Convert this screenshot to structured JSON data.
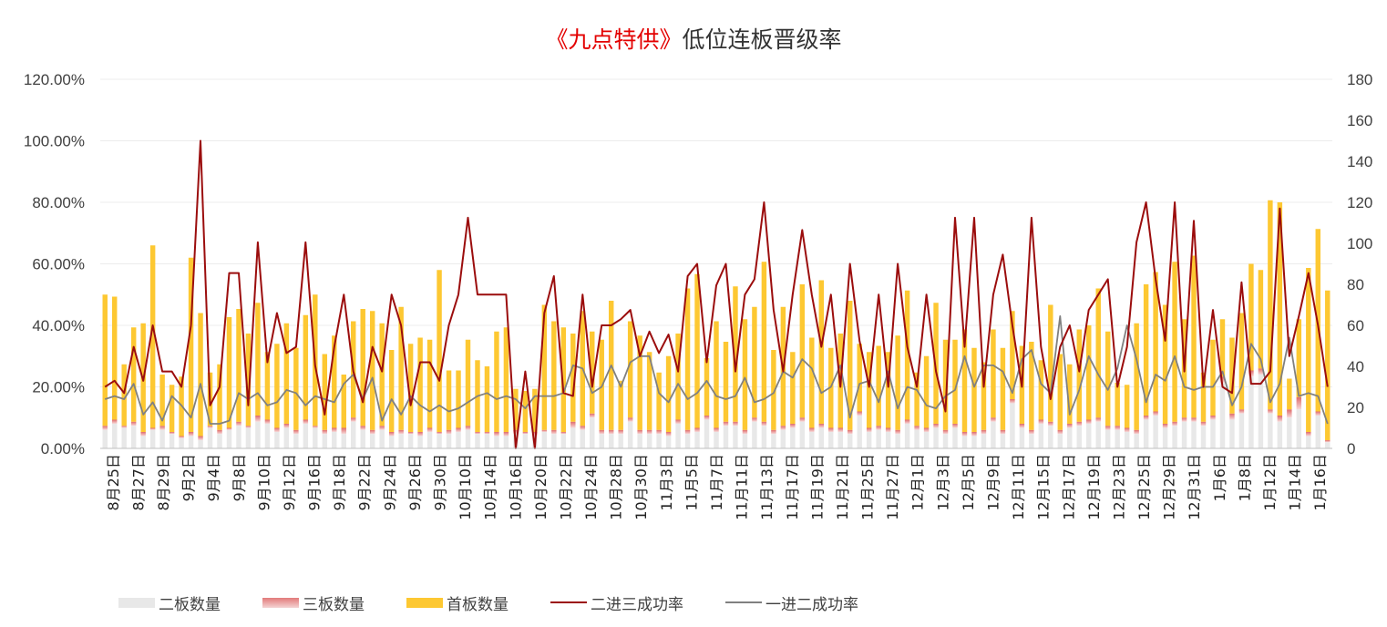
{
  "title": {
    "prefix": "《九点特供》",
    "suffix": "低位连板晋级率",
    "prefix_color": "#e30000"
  },
  "colors": {
    "first_board": "#fdc832",
    "second_board": "#e8e8e8",
    "third_board": "#e8a0a0",
    "rate_2to3": "#9b0d0d",
    "rate_1to2": "#808080",
    "axis_text": "#404040",
    "grid": "#ececec"
  },
  "legend": [
    {
      "label": "二板数量",
      "type": "box",
      "color": "#e8e8e8"
    },
    {
      "label": "三板数量",
      "type": "box",
      "color": "#e8a0a0"
    },
    {
      "label": "首板数量",
      "type": "box",
      "color": "#fdc832"
    },
    {
      "label": "二进三成功率",
      "type": "line",
      "color": "#9b0d0d"
    },
    {
      "label": "一进二成功率",
      "type": "line",
      "color": "#808080"
    }
  ],
  "chart_data": {
    "type": "bar",
    "title": "《九点特供》低位连板晋级率",
    "left_axis": {
      "ticks": [
        "0.00%",
        "20.00%",
        "40.00%",
        "60.00%",
        "80.00%",
        "100.00%",
        "120.00%"
      ],
      "ylim": [
        0,
        120
      ]
    },
    "right_axis": {
      "ticks": [
        "0",
        "20",
        "40",
        "60",
        "80",
        "100",
        "120",
        "140",
        "160",
        "180"
      ],
      "ylim": [
        0,
        180
      ]
    },
    "grid": true,
    "legend_position": "bottom",
    "x_labels": [
      "8月25日",
      "8月27日",
      "8月29日",
      "9月2日",
      "9月4日",
      "9月8日",
      "9月10日",
      "9月12日",
      "9月16日",
      "9月18日",
      "9月22日",
      "9月24日",
      "9月26日",
      "9月30日",
      "10月10日",
      "10月14日",
      "10月16日",
      "10月20日",
      "10月22日",
      "10月24日",
      "10月28日",
      "10月30日",
      "11月3日",
      "11月5日",
      "11月7日",
      "11月11日",
      "11月13日",
      "11月17日",
      "11月19日",
      "11月21日",
      "11月25日",
      "11月27日",
      "12月1日",
      "12月3日",
      "12月5日",
      "12月9日",
      "12月11日",
      "12月15日",
      "12月17日",
      "12月19日",
      "12月23日",
      "12月25日",
      "12月29日",
      "12月31日",
      "1月6日",
      "1月8日",
      "1月12日",
      "1月14日",
      "1月16日"
    ],
    "series": [
      {
        "name": "首板数量",
        "axis": "right",
        "kind": "stacked_bar",
        "values": [
          64,
          60,
          30,
          46,
          53,
          89,
          25,
          23,
          29,
          85,
          60,
          26,
          32,
          54,
          55,
          45,
          55,
          33,
          41,
          49,
          40,
          51,
          64,
          37,
          45,
          26,
          47,
          57,
          58,
          50,
          40,
          60,
          43,
          46,
          43,
          79,
          29,
          28,
          42,
          35,
          32,
          49,
          51,
          20,
          20,
          21,
          61,
          53,
          51,
          43,
          56,
          40,
          44,
          63,
          24,
          47,
          46,
          38,
          28,
          37,
          42,
          69,
          75,
          28,
          52,
          39,
          66,
          54,
          54,
          78,
          39,
          58,
          35,
          65,
          44,
          70,
          39,
          46,
          63,
          33,
          37,
          39,
          37,
          46,
          63,
          26,
          35,
          59,
          44,
          41,
          50,
          41,
          33,
          43,
          40,
          43,
          38,
          43,
          29,
          57,
          37,
          29,
          45,
          46,
          63,
          46,
          21,
          21,
          52,
          64,
          68,
          58,
          78,
          48,
          79,
          24,
          37,
          28,
          37,
          47,
          52,
          48,
          102,
          104,
          15,
          38,
          80,
          89,
          73
        ]
      },
      {
        "name": "二板数量",
        "axis": "right",
        "kind": "stacked_bar",
        "values": [
          9,
          12,
          10,
          11,
          6,
          9,
          9,
          7,
          5,
          6,
          4,
          10,
          7,
          9,
          11,
          10,
          13,
          12,
          8,
          10,
          7,
          12,
          10,
          7,
          8,
          7,
          13,
          9,
          7,
          9,
          6,
          7,
          7,
          6,
          8,
          7,
          7,
          8,
          9,
          7,
          7,
          6,
          6,
          7,
          7,
          6,
          8,
          7,
          7,
          10,
          9,
          15,
          7,
          7,
          7,
          13,
          7,
          7,
          7,
          6,
          12,
          7,
          8,
          14,
          8,
          11,
          11,
          7,
          13,
          11,
          7,
          9,
          10,
          13,
          8,
          10,
          8,
          8,
          7,
          16,
          8,
          9,
          8,
          7,
          12,
          9,
          8,
          10,
          7,
          10,
          6,
          6,
          7,
          13,
          7,
          22,
          10,
          7,
          12,
          11,
          7,
          10,
          11,
          12,
          13,
          9,
          9,
          8,
          7,
          14,
          16,
          10,
          11,
          13,
          13,
          11,
          14,
          32,
          14,
          17,
          35,
          36,
          17,
          13,
          15,
          19,
          6,
          16,
          3
        ]
      },
      {
        "name": "三板数量",
        "axis": "right",
        "kind": "stacked_bar",
        "values": [
          2,
          2,
          1,
          2,
          2,
          1,
          2,
          1,
          1,
          2,
          2,
          1,
          2,
          1,
          2,
          1,
          3,
          2,
          2,
          2,
          2,
          2,
          1,
          2,
          2,
          3,
          2,
          2,
          2,
          2,
          2,
          2,
          1,
          2,
          2,
          1,
          2,
          2,
          2,
          1,
          1,
          2,
          2,
          2,
          1,
          2,
          1,
          2,
          1,
          3,
          2,
          2,
          2,
          2,
          2,
          2,
          2,
          2,
          2,
          2,
          2,
          2,
          2,
          2,
          2,
          2,
          2,
          2,
          2,
          2,
          2,
          2,
          2,
          2,
          2,
          2,
          2,
          2,
          2,
          2,
          2,
          2,
          2,
          2,
          2,
          2,
          2,
          2,
          2,
          2,
          2,
          2,
          2,
          2,
          2,
          2,
          2,
          2,
          2,
          2,
          2,
          2,
          2,
          2,
          2,
          2,
          2,
          2,
          2,
          2,
          2,
          2,
          2,
          2,
          2,
          2,
          2,
          3,
          3,
          2,
          3,
          3,
          2,
          3,
          4,
          6,
          2,
          2,
          1
        ]
      },
      {
        "name": "二进三成功率",
        "axis": "left",
        "kind": "line",
        "unit": "%",
        "values": [
          20,
          22,
          18,
          33,
          22,
          40,
          25,
          25,
          20,
          40,
          100,
          14,
          20,
          57,
          57,
          14,
          67,
          28,
          44,
          31,
          33,
          67,
          27,
          11,
          33,
          50,
          25,
          15,
          33,
          25,
          50,
          40,
          14,
          28,
          28,
          22,
          40,
          50,
          75,
          50,
          50,
          50,
          50,
          0,
          25,
          0,
          44,
          56,
          18,
          17,
          50,
          20,
          40,
          40,
          42,
          45,
          30,
          38,
          31,
          37,
          25,
          56,
          60,
          28,
          53,
          60,
          25,
          50,
          55,
          80,
          45,
          25,
          50,
          71,
          50,
          33,
          50,
          20,
          60,
          35,
          20,
          50,
          20,
          60,
          33,
          20,
          50,
          25,
          12,
          75,
          33,
          75,
          20,
          50,
          63,
          40,
          20,
          75,
          33,
          16,
          33,
          40,
          25,
          45,
          50,
          55,
          20,
          33,
          67,
          80,
          55,
          35,
          80,
          25,
          74,
          20,
          45,
          20,
          18,
          54,
          21,
          21,
          25,
          78,
          30,
          43,
          57,
          40,
          20
        ]
      },
      {
        "name": "一进二成功率",
        "axis": "left",
        "kind": "line",
        "unit": "%",
        "values": [
          16,
          17,
          16,
          21,
          11,
          15,
          9,
          17,
          14,
          10,
          21,
          8,
          8,
          9,
          18,
          16,
          18,
          14,
          15,
          19,
          18,
          14,
          17,
          16,
          15,
          21,
          24,
          16,
          23,
          9,
          16,
          11,
          17,
          14,
          12,
          14,
          12,
          13,
          15,
          17,
          18,
          16,
          17,
          16,
          13,
          17,
          17,
          17,
          18,
          27,
          26,
          18,
          20,
          27,
          20,
          28,
          30,
          30,
          18,
          15,
          21,
          16,
          18,
          22,
          17,
          16,
          17,
          23,
          15,
          16,
          18,
          25,
          23,
          29,
          26,
          18,
          20,
          27,
          10,
          21,
          22,
          15,
          25,
          13,
          20,
          19,
          14,
          13,
          17,
          19,
          30,
          20,
          27,
          27,
          25,
          18,
          29,
          32,
          21,
          18,
          43,
          11,
          19,
          30,
          24,
          19,
          26,
          40,
          29,
          15,
          24,
          22,
          30,
          20,
          19,
          20,
          20,
          25,
          14,
          20,
          34,
          29,
          15,
          21,
          36,
          17,
          18,
          17,
          8
        ]
      }
    ]
  }
}
